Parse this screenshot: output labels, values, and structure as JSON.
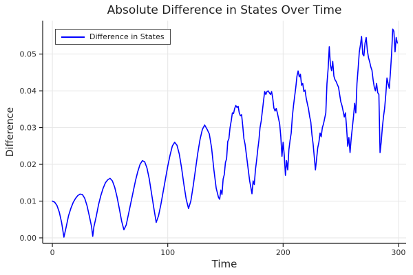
{
  "chart_data": {
    "type": "line",
    "title": "Absolute Difference in States Over Time",
    "xlabel": "Time",
    "ylabel": "Difference",
    "grid": true,
    "legend_position": "top-left",
    "xlim": [
      -8.4,
      306.6
    ],
    "ylim": [
      -0.0015,
      0.0591
    ],
    "xticks": [
      0,
      100,
      200,
      300
    ],
    "xtick_labels": [
      "0",
      "100",
      "200",
      "300"
    ],
    "yticks": [
      0.0,
      0.01,
      0.02,
      0.03,
      0.04,
      0.05
    ],
    "ytick_labels": [
      "0.00",
      "0.01",
      "0.02",
      "0.03",
      "0.04",
      "0.05"
    ],
    "style": {
      "line_color": "#0000ff",
      "grid_color": "#e6e6e6",
      "axis_color": "#1a1a1a",
      "tick_label_color": "#2a2a2a",
      "background": "#ffffff"
    },
    "series": [
      {
        "name": "Difference in States",
        "color": "#0000ff",
        "x": [
          0,
          2,
          4,
          6,
          8,
          10,
          12,
          14,
          16,
          18,
          20,
          22,
          24,
          26,
          28,
          30,
          32,
          34,
          35,
          36,
          38,
          40,
          42,
          44,
          46,
          48,
          50,
          52,
          54,
          56,
          58,
          60,
          62,
          64,
          66,
          68,
          70,
          72,
          74,
          76,
          78,
          80,
          82,
          84,
          86,
          88,
          90,
          92,
          94,
          96,
          98,
          100,
          102,
          104,
          106,
          108,
          110,
          112,
          114,
          116,
          118,
          120,
          122,
          124,
          126,
          128,
          130,
          132,
          134,
          136,
          138,
          140,
          142,
          144,
          145,
          146,
          147,
          148,
          149,
          150,
          151,
          152,
          153,
          154,
          155,
          156,
          157,
          158,
          159,
          160,
          161,
          162,
          163,
          164,
          165,
          166,
          167,
          168,
          169,
          170,
          171,
          172,
          173,
          174,
          175,
          176,
          177,
          178,
          179,
          180,
          181,
          182,
          183,
          184,
          185,
          186,
          187,
          188,
          189,
          190,
          191,
          192,
          193,
          194,
          195,
          196,
          197,
          198,
          199,
          200,
          201,
          202,
          203,
          204,
          205,
          206,
          207,
          208,
          209,
          210,
          211,
          212,
          213,
          214,
          215,
          216,
          217,
          218,
          219,
          220,
          221,
          222,
          223,
          224,
          225,
          226,
          227,
          228,
          229,
          230,
          231,
          232,
          233,
          234,
          235,
          236,
          237,
          238,
          239,
          240,
          241,
          242,
          243,
          244,
          245,
          246,
          247,
          248,
          249,
          250,
          251,
          252,
          253,
          254,
          255,
          256,
          257,
          258,
          259,
          260,
          261,
          262,
          263,
          264,
          265,
          266,
          267,
          268,
          269,
          270,
          271,
          272,
          273,
          274,
          275,
          276,
          277,
          278,
          279,
          280,
          281,
          282,
          283,
          284,
          285,
          286,
          287,
          288,
          289,
          290,
          291,
          292,
          293,
          294,
          295,
          296,
          297,
          298,
          299
        ],
        "y": [
          0.01,
          0.0097,
          0.0088,
          0.007,
          0.0042,
          0.0002,
          0.003,
          0.006,
          0.008,
          0.0096,
          0.0107,
          0.0115,
          0.0119,
          0.0118,
          0.0108,
          0.0088,
          0.006,
          0.003,
          0.0004,
          0.003,
          0.0058,
          0.009,
          0.0115,
          0.0135,
          0.015,
          0.0158,
          0.0162,
          0.0155,
          0.0138,
          0.0112,
          0.008,
          0.0046,
          0.0022,
          0.0035,
          0.0065,
          0.0095,
          0.0125,
          0.0155,
          0.018,
          0.02,
          0.021,
          0.0207,
          0.019,
          0.016,
          0.012,
          0.008,
          0.0042,
          0.006,
          0.009,
          0.0125,
          0.016,
          0.0195,
          0.0225,
          0.025,
          0.026,
          0.0252,
          0.0228,
          0.019,
          0.0145,
          0.0105,
          0.008,
          0.01,
          0.014,
          0.0185,
          0.023,
          0.0268,
          0.0295,
          0.0307,
          0.0296,
          0.0283,
          0.0245,
          0.0185,
          0.0135,
          0.011,
          0.0105,
          0.013,
          0.0118,
          0.016,
          0.0172,
          0.0205,
          0.0215,
          0.0262,
          0.027,
          0.03,
          0.0318,
          0.034,
          0.0338,
          0.0352,
          0.036,
          0.0355,
          0.0358,
          0.034,
          0.0332,
          0.0335,
          0.0305,
          0.027,
          0.0255,
          0.023,
          0.0205,
          0.018,
          0.0155,
          0.0138,
          0.012,
          0.0155,
          0.0145,
          0.0185,
          0.021,
          0.024,
          0.0265,
          0.03,
          0.0318,
          0.0345,
          0.0372,
          0.0398,
          0.039,
          0.0398,
          0.04,
          0.0395,
          0.039,
          0.0398,
          0.038,
          0.0353,
          0.0345,
          0.0352,
          0.034,
          0.0325,
          0.031,
          0.0275,
          0.0222,
          0.026,
          0.0225,
          0.017,
          0.021,
          0.0185,
          0.024,
          0.0265,
          0.0285,
          0.033,
          0.036,
          0.0385,
          0.041,
          0.044,
          0.0454,
          0.0438,
          0.0445,
          0.0415,
          0.042,
          0.0398,
          0.0402,
          0.038,
          0.0365,
          0.0351,
          0.033,
          0.0315,
          0.028,
          0.0255,
          0.022,
          0.0185,
          0.0215,
          0.0245,
          0.026,
          0.0285,
          0.0275,
          0.03,
          0.031,
          0.0325,
          0.034,
          0.042,
          0.046,
          0.052,
          0.047,
          0.0455,
          0.048,
          0.044,
          0.043,
          0.0425,
          0.0417,
          0.041,
          0.039,
          0.037,
          0.036,
          0.0345,
          0.0329,
          0.034,
          0.03,
          0.0249,
          0.0273,
          0.0232,
          0.027,
          0.03,
          0.033,
          0.0366,
          0.034,
          0.042,
          0.046,
          0.0505,
          0.0525,
          0.0548,
          0.05,
          0.0495,
          0.053,
          0.0545,
          0.051,
          0.049,
          0.0479,
          0.0465,
          0.0456,
          0.043,
          0.041,
          0.04,
          0.042,
          0.0395,
          0.039,
          0.0232,
          0.026,
          0.03,
          0.033,
          0.0353,
          0.039,
          0.0435,
          0.042,
          0.0407,
          0.045,
          0.05,
          0.0568,
          0.0562,
          0.0506,
          0.0545,
          0.053
        ]
      }
    ]
  }
}
